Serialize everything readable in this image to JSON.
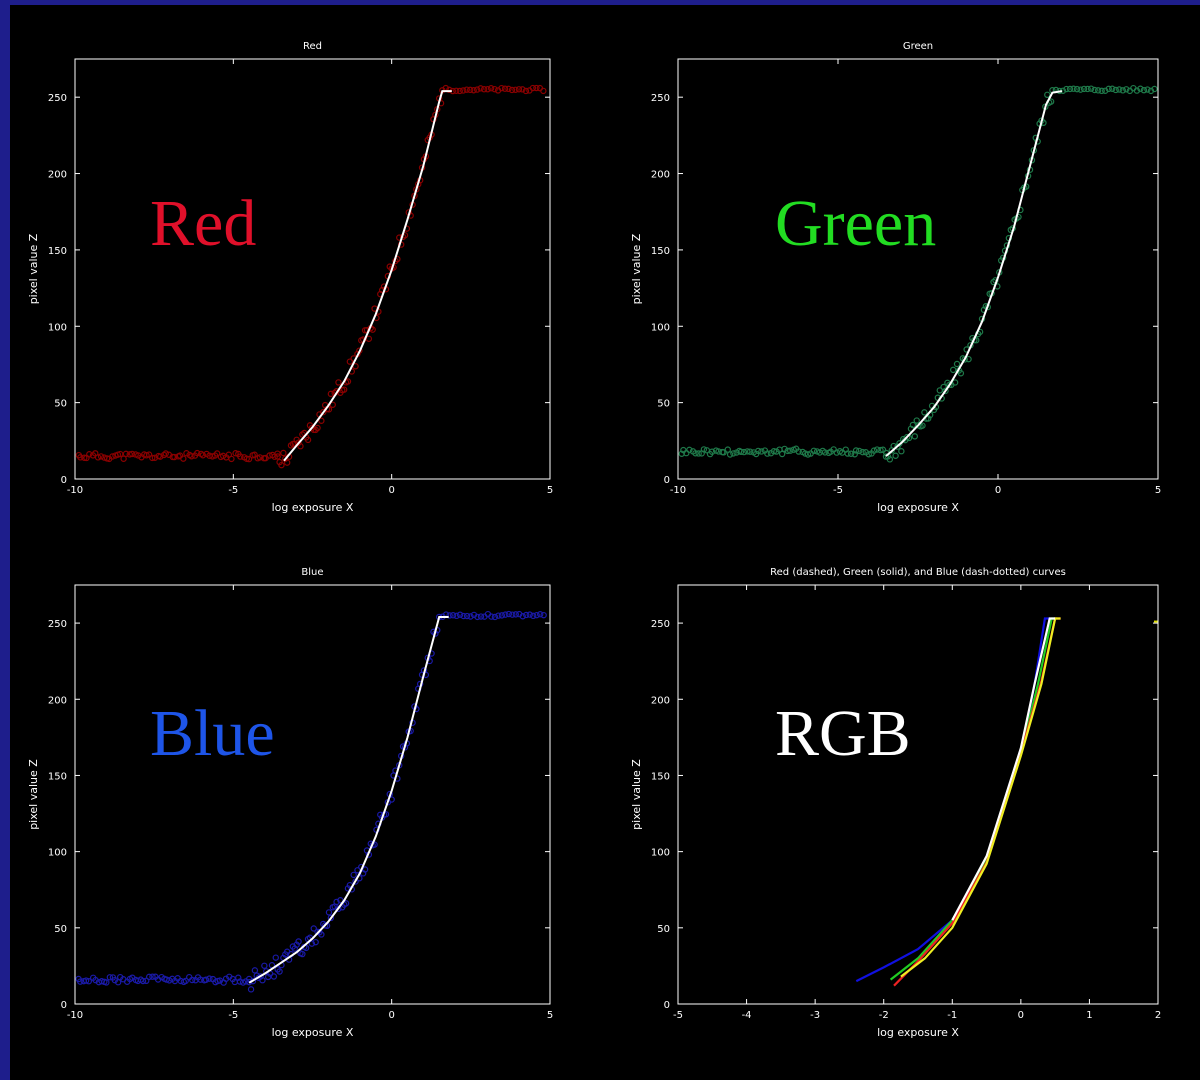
{
  "colors": {
    "page_border": "#1e1e8c",
    "canvas": "#000000",
    "fit_curve": "#ffffff",
    "red_points": "#8b0000",
    "green_points": "#1f7a4a",
    "blue_points": "#1a1aa8",
    "red_overlay": "#e0102a",
    "green_overlay": "#22dd22",
    "blue_overlay": "#1e55e8",
    "rgb_overlay": "#ffffff"
  },
  "chart_data": [
    {
      "type": "scatter",
      "title": "Red",
      "overlay_label": "Red",
      "xlabel": "log exposure X",
      "ylabel": "pixel value Z",
      "xlim": [
        -10,
        5
      ],
      "ylim": [
        0,
        275
      ],
      "xticks": [
        "-10",
        "-5",
        "0",
        "5"
      ],
      "yticks": [
        "0",
        "50",
        "100",
        "150",
        "200",
        "250"
      ],
      "points_color": "red_points",
      "points_band": {
        "floor_y": 15,
        "start_x": -9.9,
        "ramp_start_x": -3.6,
        "sat_x": 1.6,
        "sat_y": 255,
        "end_x": 4.9
      },
      "fit_curve": {
        "x": [
          -3.4,
          -3.0,
          -2.5,
          -2.0,
          -1.5,
          -1.0,
          -0.5,
          0.0,
          0.5,
          1.0,
          1.5,
          1.6
        ],
        "y": [
          12,
          22,
          34,
          48,
          64,
          84,
          108,
          137,
          170,
          205,
          247,
          254
        ]
      },
      "grid": false,
      "legend": null
    },
    {
      "type": "scatter",
      "title": "Green",
      "overlay_label": "Green",
      "xlabel": "log exposure X",
      "ylabel": "pixel value Z",
      "xlim": [
        -10,
        5
      ],
      "ylim": [
        0,
        275
      ],
      "xticks": [
        "-10",
        "-5",
        "0",
        "5"
      ],
      "yticks": [
        "0",
        "50",
        "100",
        "150",
        "200",
        "250"
      ],
      "points_color": "green_points",
      "points_band": {
        "floor_y": 18,
        "start_x": -9.9,
        "ramp_start_x": -3.5,
        "sat_x": 1.7,
        "sat_y": 255,
        "end_x": 4.9
      },
      "fit_curve": {
        "x": [
          -3.5,
          -3.0,
          -2.5,
          -2.0,
          -1.5,
          -1.0,
          -0.5,
          0.0,
          0.5,
          1.0,
          1.5,
          1.7
        ],
        "y": [
          15,
          24,
          35,
          47,
          62,
          80,
          103,
          132,
          165,
          205,
          245,
          253
        ]
      },
      "grid": false,
      "legend": null
    },
    {
      "type": "scatter",
      "title": "Blue",
      "overlay_label": "Blue",
      "xlabel": "log exposure X",
      "ylabel": "pixel value Z",
      "xlim": [
        -10,
        5
      ],
      "ylim": [
        0,
        275
      ],
      "xticks": [
        "-10",
        "-5",
        "0",
        "5"
      ],
      "yticks": [
        "0",
        "50",
        "100",
        "150",
        "200",
        "250"
      ],
      "points_color": "blue_points",
      "points_band": {
        "floor_y": 16,
        "start_x": -9.9,
        "ramp_start_x": -4.5,
        "sat_x": 1.5,
        "sat_y": 255,
        "end_x": 4.9
      },
      "fit_curve": {
        "x": [
          -4.5,
          -4.0,
          -3.5,
          -3.0,
          -2.5,
          -2.0,
          -1.5,
          -1.0,
          -0.5,
          0.0,
          0.5,
          1.0,
          1.5
        ],
        "y": [
          14,
          20,
          27,
          34,
          43,
          54,
          68,
          86,
          110,
          140,
          175,
          215,
          254
        ]
      },
      "grid": false,
      "legend": null
    },
    {
      "type": "line",
      "title": "Red (dashed), Green (solid), and Blue (dash-dotted) curves",
      "overlay_label": "RGB",
      "xlabel": "log exposure X",
      "ylabel": "pixel value Z",
      "xlim": [
        -5,
        2
      ],
      "ylim": [
        0,
        275
      ],
      "xticks": [
        "-5",
        "-4",
        "-3",
        "-2",
        "-1",
        "0",
        "1",
        "2"
      ],
      "yticks": [
        "0",
        "50",
        "100",
        "150",
        "200",
        "250"
      ],
      "series": [
        {
          "color": "#1010e0",
          "x": [
            -2.4,
            -2.0,
            -1.5,
            -1.0,
            -0.5,
            0.0,
            0.2,
            0.35
          ],
          "y": [
            15,
            24,
            36,
            55,
            95,
            165,
            210,
            253
          ]
        },
        {
          "color": "#22cc22",
          "x": [
            -1.9,
            -1.5,
            -1.0,
            -0.5,
            0.0,
            0.25,
            0.45
          ],
          "y": [
            16,
            30,
            55,
            95,
            165,
            210,
            253
          ]
        },
        {
          "color": "#ee2222",
          "x": [
            -1.85,
            -1.5,
            -1.0,
            -0.5,
            0.0,
            0.3,
            0.5
          ],
          "y": [
            12,
            28,
            53,
            93,
            165,
            212,
            253
          ]
        },
        {
          "color": "#eeee22",
          "x": [
            -1.75,
            -1.4,
            -1.0,
            -0.5,
            0.0,
            0.3,
            0.5
          ],
          "y": [
            18,
            30,
            50,
            92,
            163,
            210,
            253
          ]
        },
        {
          "color": "#ffffff",
          "x": [
            -1.0,
            -0.5,
            0.0,
            0.2,
            0.42
          ],
          "y": [
            55,
            97,
            168,
            210,
            253
          ]
        }
      ],
      "grid": false,
      "legend": null
    }
  ]
}
